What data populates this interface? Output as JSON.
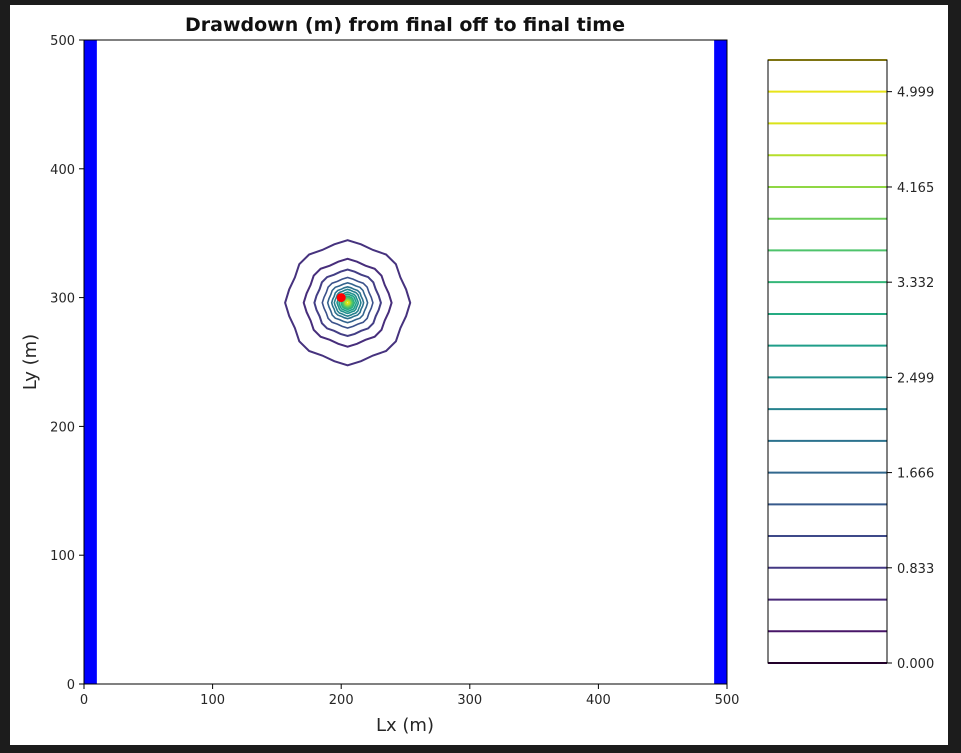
{
  "chart_data": [
    {
      "type": "contour",
      "title": "Drawdown (m) from final off to final time",
      "xlabel": "Lx (m)",
      "ylabel": "Ly (m)",
      "xlim": [
        0,
        500
      ],
      "ylim": [
        0,
        500
      ],
      "xticks": [
        0,
        100,
        200,
        300,
        400,
        500
      ],
      "yticks": [
        0,
        100,
        200,
        300,
        400,
        500
      ],
      "grid": false,
      "boundaries": [
        {
          "x_range": [
            0,
            10
          ],
          "color": "#0000ff"
        },
        {
          "x_range": [
            490,
            500
          ],
          "color": "#0000ff"
        }
      ],
      "well": {
        "x": 200,
        "y": 300,
        "color": "#ff0000"
      },
      "contour_center": {
        "x": 205,
        "y": 296
      },
      "contour_radii": [
        47,
        33,
        25,
        19,
        15,
        12,
        10,
        8,
        6.5,
        5,
        4,
        3,
        2.3,
        1.6,
        1
      ],
      "contour_colors": [
        "#46327e",
        "#472d7b",
        "#433e85",
        "#3b528b",
        "#33638d",
        "#2c728e",
        "#26828e",
        "#21918c",
        "#1fa088",
        "#28ae80",
        "#3fbc73",
        "#5ec962",
        "#84d44b",
        "#addc30",
        "#d8e219"
      ]
    },
    {
      "type": "colorbar",
      "tick_labels": [
        "0.000",
        "0.833",
        "1.666",
        "2.499",
        "3.332",
        "4.165",
        "4.999"
      ],
      "tick_values": [
        0.0,
        0.833,
        1.666,
        2.499,
        3.332,
        4.165,
        4.999
      ],
      "levels": [
        0.0,
        0.278,
        0.555,
        0.833,
        1.111,
        1.388,
        1.666,
        1.944,
        2.221,
        2.499,
        2.777,
        3.054,
        3.332,
        3.61,
        3.887,
        4.165,
        4.443,
        4.721,
        4.999,
        5.276
      ],
      "vmax": 5.276,
      "level_colors": [
        "#440154",
        "#481668",
        "#482878",
        "#443983",
        "#3e4989",
        "#375a8c",
        "#31688e",
        "#2c728e",
        "#26828e",
        "#21918c",
        "#1f9e89",
        "#25ab82",
        "#35b779",
        "#4ec36b",
        "#6ccd5a",
        "#8fd744",
        "#b5de2b",
        "#dae319",
        "#e8e419",
        "#fde725"
      ]
    }
  ]
}
